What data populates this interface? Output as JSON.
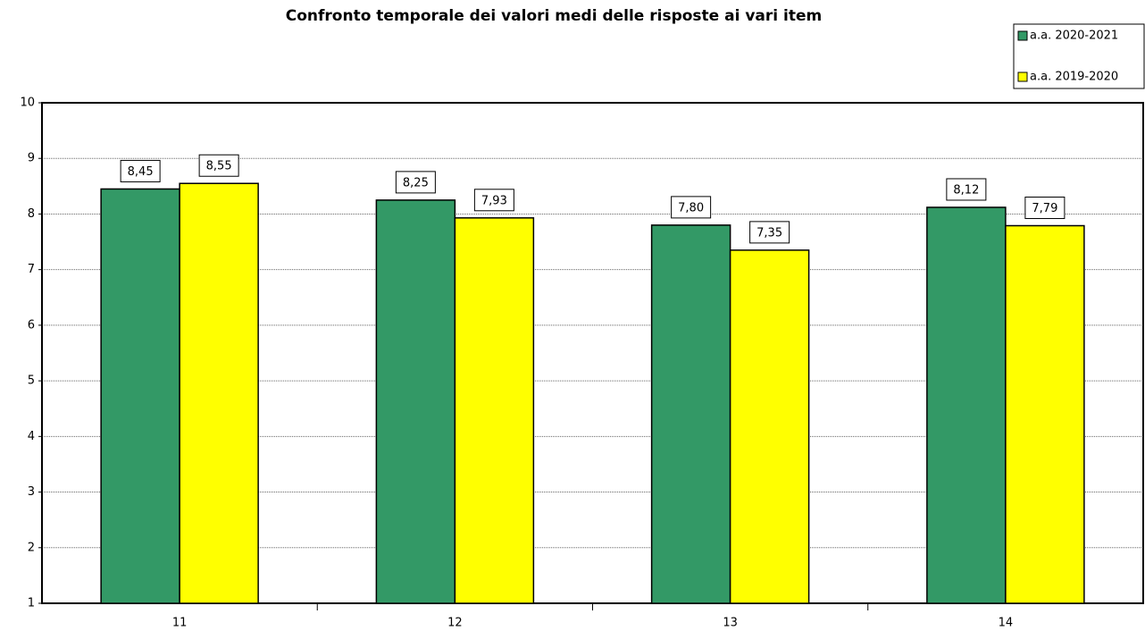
{
  "chart_data": {
    "type": "bar",
    "title": "Confronto temporale dei valori medi delle risposte ai vari item",
    "categories": [
      "11",
      "12",
      "13",
      "14"
    ],
    "series": [
      {
        "name": "a.a. 2020-2021",
        "color": "#339966",
        "values": [
          8.45,
          8.25,
          7.8,
          8.12
        ],
        "value_labels": [
          "8,45",
          "8,25",
          "7,80",
          "8,12"
        ]
      },
      {
        "name": "a.a. 2019-2020",
        "color": "#ffff00",
        "values": [
          8.55,
          7.93,
          7.35,
          7.79
        ],
        "value_labels": [
          "8,55",
          "7,93",
          "7,35",
          "7,79"
        ]
      }
    ],
    "ylim": [
      1,
      10
    ],
    "yticks": [
      1,
      2,
      3,
      4,
      5,
      6,
      7,
      8,
      9,
      10
    ],
    "grid": true,
    "legend": "top-right"
  }
}
